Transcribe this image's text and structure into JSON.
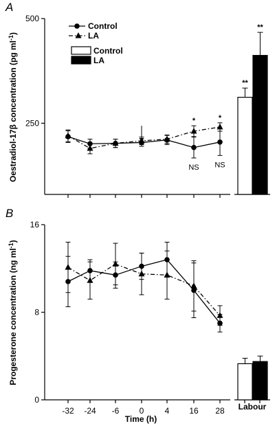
{
  "chart_data": [
    {
      "type": "line",
      "panel_label": "A",
      "ylabel": "Oestradiol-17β concentration (pg ml",
      "ylabel_sup": "-1",
      "ylabel_close": ")",
      "ylim": [
        80,
        500
      ],
      "yticks": [
        {
          "value": 250,
          "label": "250"
        },
        {
          "value": 500,
          "label": "500"
        }
      ],
      "xticks": [
        "-32",
        "-24",
        "-6",
        "0",
        "4",
        "16",
        "28"
      ],
      "legend": {
        "position": "top-left",
        "entries": [
          "Control",
          "LA"
        ]
      },
      "series": [
        {
          "name": "Control",
          "marker": "circle",
          "line": "solid",
          "values": [
            218,
            201,
            202,
            204,
            210,
            192,
            205
          ],
          "errors": [
            14,
            11,
            10,
            9,
            11,
            25,
            32
          ]
        },
        {
          "name": "LA",
          "marker": "triangle",
          "line": "dash-dot",
          "values": [
            220,
            190,
            202,
            208,
            212,
            231,
            241
          ],
          "errors": [
            14,
            13,
            10,
            9,
            10,
            13,
            10
          ]
        }
      ],
      "event_arrow_at": "0",
      "annotations": [
        {
          "x": "16",
          "stars": "*",
          "below": "NS"
        },
        {
          "x": "28",
          "stars": "*",
          "below": "NS"
        }
      ]
    },
    {
      "type": "bar",
      "ylim": [
        80,
        500
      ],
      "legend": {
        "position": "top-left",
        "entries": [
          "Control",
          "LA"
        ]
      },
      "categories": [
        "Labour"
      ],
      "series": [
        {
          "name": "Control",
          "fill": "#ffffff",
          "values": [
            312
          ],
          "errors": [
            22
          ],
          "stars": "**"
        },
        {
          "name": "LA",
          "fill": "#000000",
          "values": [
            412
          ],
          "errors": [
            55
          ],
          "stars": "**"
        }
      ]
    },
    {
      "type": "line",
      "panel_label": "B",
      "ylabel": "Progesterone concentration (ng ml",
      "ylabel_sup": "-1",
      "ylabel_close": ")",
      "ylim": [
        0,
        16
      ],
      "yticks": [
        {
          "value": 0,
          "label": "0"
        },
        {
          "value": 8,
          "label": "8"
        },
        {
          "value": 16,
          "label": "16"
        }
      ],
      "xlabel": "Time (h)",
      "xticks": [
        "-32",
        "-24",
        "-6",
        "0",
        "4",
        "16",
        "28"
      ],
      "series": [
        {
          "name": "Control",
          "marker": "circle",
          "line": "solid",
          "values": [
            10.8,
            11.8,
            11.4,
            12.2,
            12.8,
            10.0,
            7.0
          ],
          "errors": [
            2.3,
            1.0,
            1.2,
            1.2,
            1.6,
            2.5,
            0.8
          ]
        },
        {
          "name": "LA",
          "marker": "triangle",
          "line": "dash-dot",
          "values": [
            12.1,
            10.9,
            12.4,
            11.5,
            11.4,
            10.4,
            7.7
          ],
          "errors": [
            2.3,
            1.7,
            1.9,
            1.9,
            2.2,
            2.3,
            0.9
          ]
        }
      ]
    },
    {
      "type": "bar",
      "ylim": [
        0,
        16
      ],
      "categories": [
        "Labour"
      ],
      "series": [
        {
          "name": "Control",
          "fill": "#ffffff",
          "values": [
            3.3
          ],
          "errors": [
            0.5
          ]
        },
        {
          "name": "LA",
          "fill": "#000000",
          "values": [
            3.5
          ],
          "errors": [
            0.5
          ]
        }
      ]
    }
  ]
}
